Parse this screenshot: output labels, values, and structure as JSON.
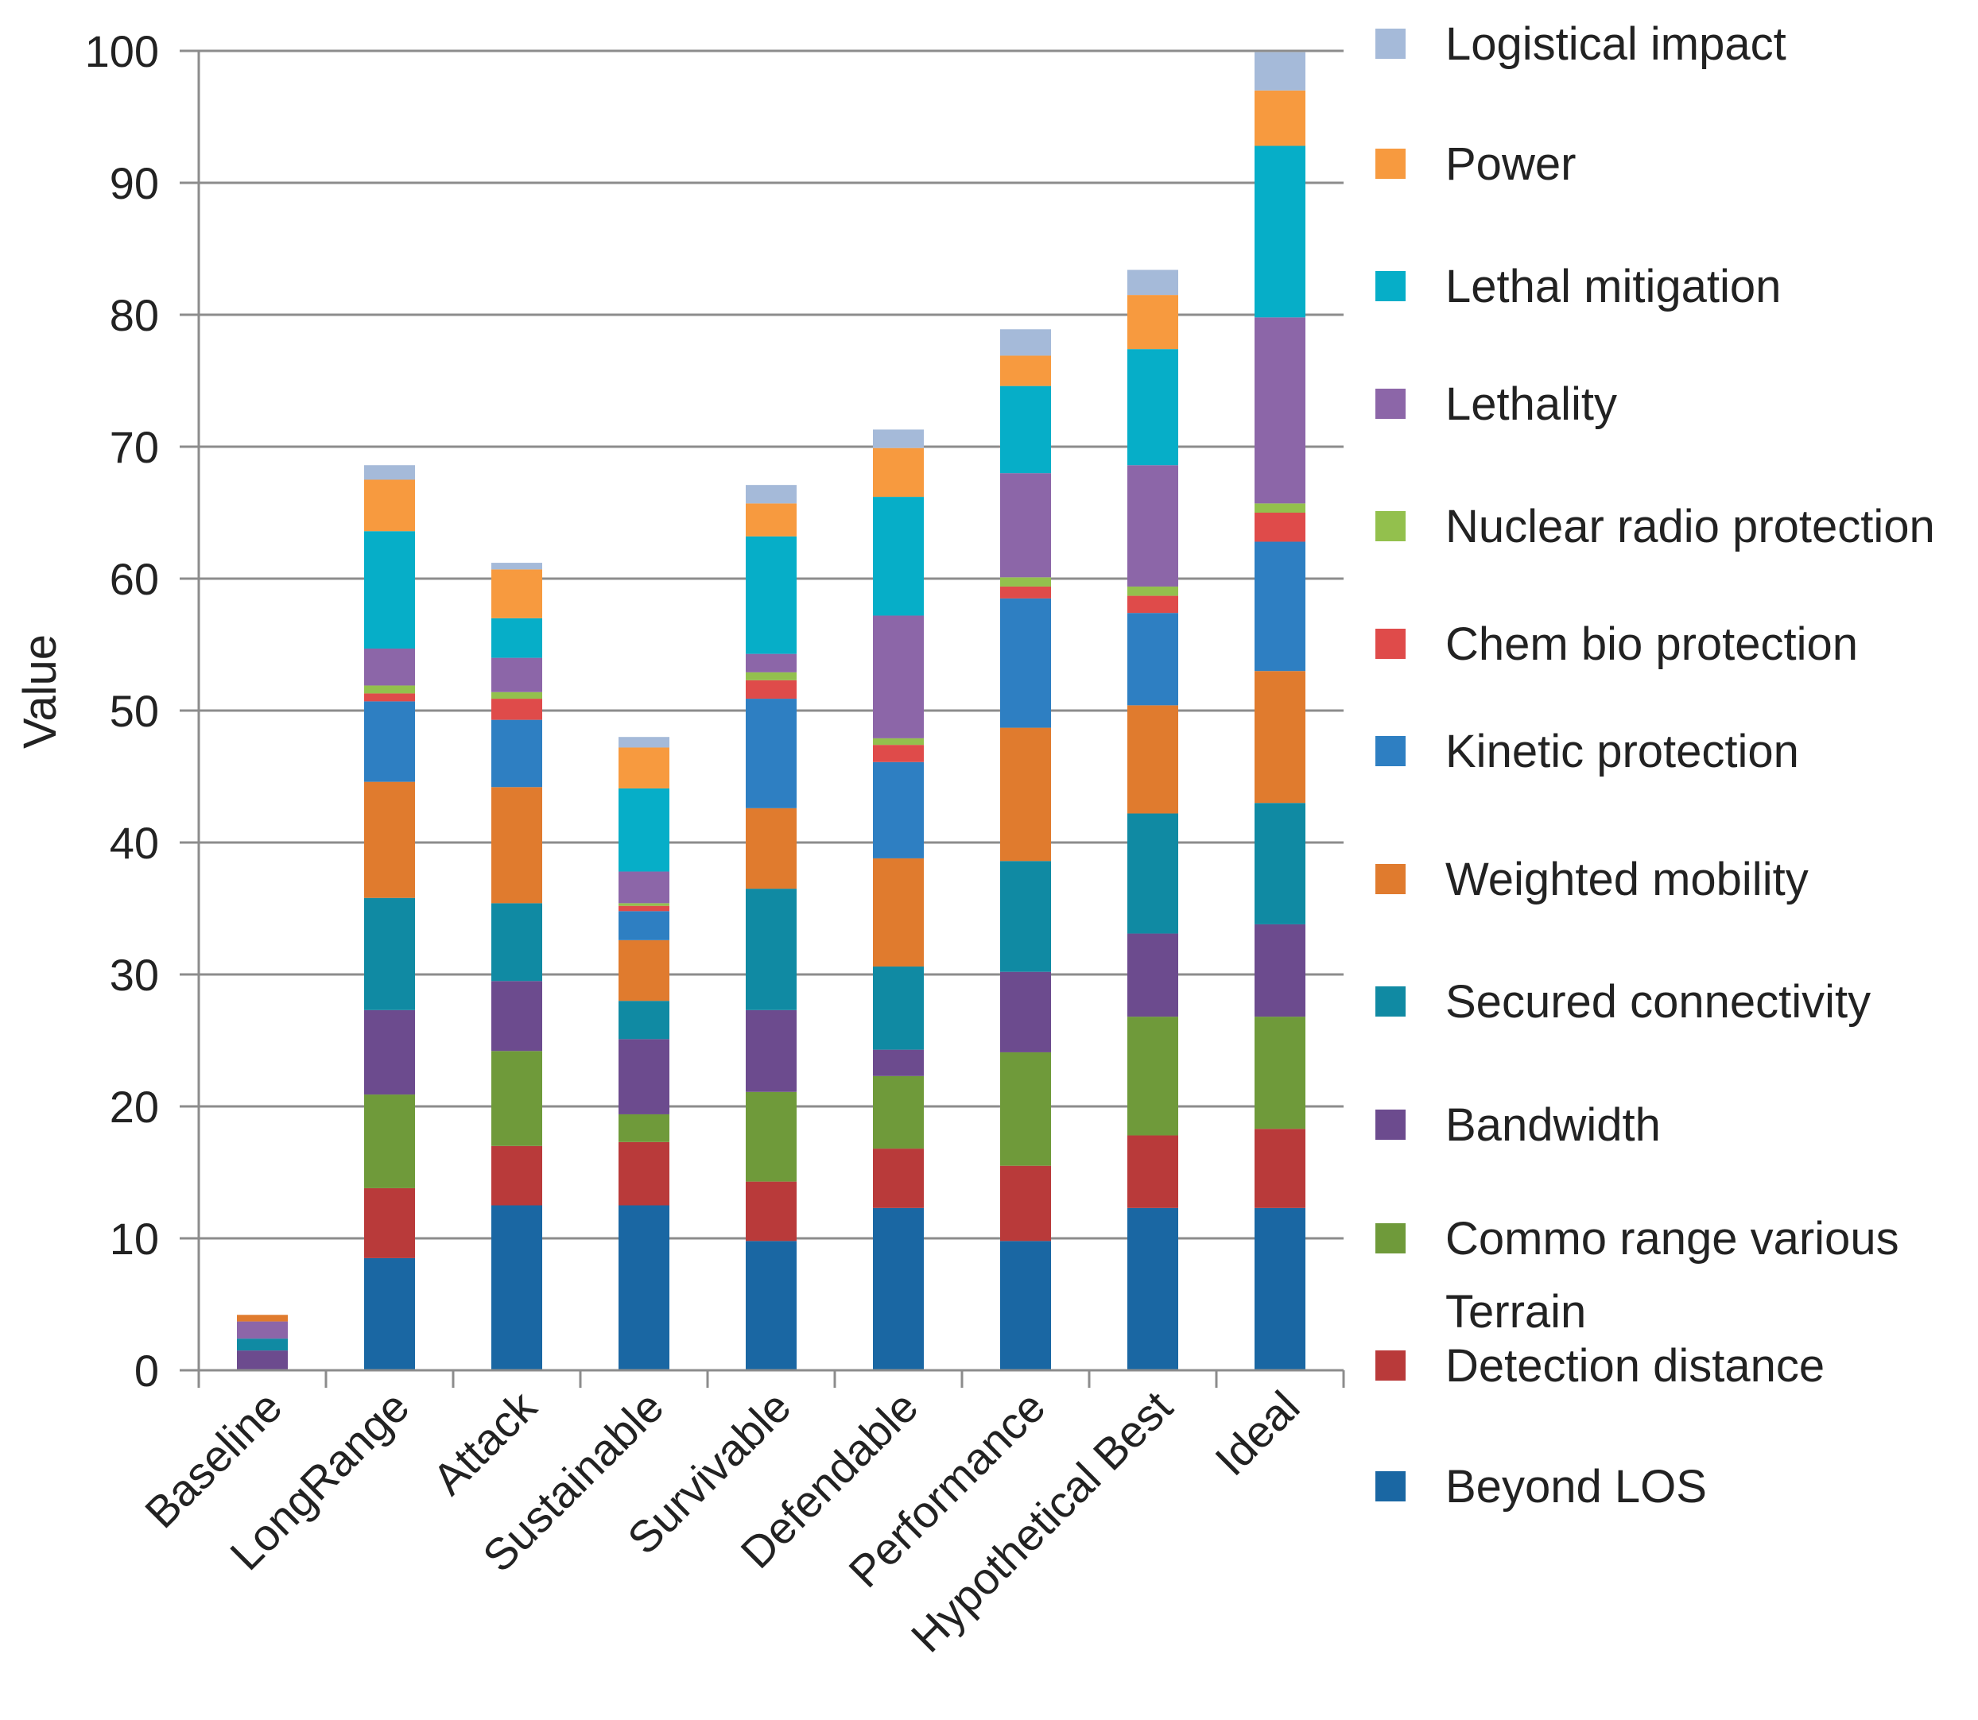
{
  "chart_data": {
    "type": "bar",
    "stacked": true,
    "title": "",
    "xlabel": "",
    "ylabel": "Value",
    "ylim": [
      0,
      100
    ],
    "yticks": [
      0,
      10,
      20,
      30,
      40,
      50,
      60,
      70,
      80,
      90,
      100
    ],
    "grid": true,
    "legend_position": "right",
    "categories": [
      "Baseline",
      "LongRange",
      "Attack",
      "Sustainable",
      "Survivable",
      "Defendable",
      "Performance",
      "Hypothetical Best",
      "Ideal"
    ],
    "series": [
      {
        "name": "Beyond LOS",
        "color": "#1a67a3",
        "values": [
          0,
          8.5,
          12.5,
          12.5,
          9.8,
          12.3,
          9.8,
          12.3,
          12.3
        ]
      },
      {
        "name": "Terrain Detection distance",
        "color": "#b93a3a",
        "values": [
          0,
          5.3,
          4.5,
          4.8,
          4.5,
          4.5,
          5.7,
          5.5,
          6.0
        ]
      },
      {
        "name": "Commo range various",
        "color": "#6f9a3a",
        "values": [
          0,
          7.1,
          7.2,
          2.1,
          6.8,
          5.5,
          8.6,
          9.0,
          8.5
        ]
      },
      {
        "name": "Bandwidth",
        "color": "#6c4b8e",
        "values": [
          0,
          6.4,
          5.3,
          5.7,
          6.2,
          2.0,
          6.1,
          6.3,
          7.0
        ]
      },
      {
        "name": "Secured connectivity",
        "color": "#108aa3",
        "values": [
          0,
          8.5,
          5.9,
          2.9,
          9.2,
          6.3,
          8.4,
          9.1,
          9.2
        ]
      },
      {
        "name": "Weighted mobility",
        "color": "#e07b2e",
        "values": [
          0,
          8.8,
          8.8,
          4.6,
          6.1,
          8.2,
          10.1,
          8.2,
          10.0
        ]
      },
      {
        "name": "Kinetic protection",
        "color": "#2e7fc2",
        "values": [
          0,
          6.1,
          5.1,
          2.2,
          8.3,
          7.3,
          9.8,
          7.0,
          9.8
        ]
      },
      {
        "name": "Chem bio protection",
        "color": "#df4b4a",
        "values": [
          0,
          0.6,
          1.6,
          0.4,
          1.4,
          1.3,
          0.9,
          1.3,
          2.2
        ]
      },
      {
        "name": "Nuclear radio protection",
        "color": "#93c04d",
        "values": [
          0,
          0.6,
          0.5,
          0.2,
          0.6,
          0.5,
          0.7,
          0.7,
          0.7
        ]
      },
      {
        "name": "Lethality",
        "color": "#8c66a8",
        "values": [
          0,
          2.8,
          2.6,
          2.4,
          1.4,
          9.3,
          7.9,
          9.2,
          14.1
        ]
      },
      {
        "name": "Lethal mitigation",
        "color": "#06aec8",
        "values": [
          0,
          8.9,
          3.0,
          6.3,
          8.9,
          9.0,
          6.6,
          8.8,
          13.0
        ]
      },
      {
        "name": "Power",
        "color": "#f79a3f",
        "values": [
          0,
          3.9,
          3.7,
          3.1,
          2.5,
          3.7,
          2.3,
          4.1,
          4.2
        ]
      },
      {
        "name": "Logistical impact",
        "color": "#a5bad9",
        "values": [
          0,
          1.1,
          0.5,
          0.8,
          1.4,
          1.4,
          2.0,
          1.9,
          2.9
        ]
      }
    ],
    "baseline_segments": [
      {
        "name": "Bandwidth",
        "color": "#6c4b8e",
        "value": 1.5
      },
      {
        "name": "Secured connectivity",
        "color": "#108aa3",
        "value": 0.9
      },
      {
        "name": "Lethality",
        "color": "#8c66a8",
        "value": 1.3
      },
      {
        "name": "Weighted mobility",
        "color": "#e07b2e",
        "value": 0.5
      }
    ]
  },
  "legend": {
    "items": [
      {
        "label": "Logistical impact",
        "color": "#a5bad9"
      },
      {
        "label": "Power",
        "color": "#f79a3f"
      },
      {
        "label": "Lethal mitigation",
        "color": "#06aec8"
      },
      {
        "label": "Lethality",
        "color": "#8c66a8"
      },
      {
        "label": "Nuclear radio protection",
        "color": "#93c04d"
      },
      {
        "label": "Chem bio protection",
        "color": "#df4b4a"
      },
      {
        "label": "Kinetic protection",
        "color": "#2e7fc2"
      },
      {
        "label": "Weighted mobility",
        "color": "#e07b2e"
      },
      {
        "label": "Secured connectivity",
        "color": "#108aa3"
      },
      {
        "label": "Bandwidth",
        "color": "#6c4b8e"
      },
      {
        "label": "Commo range various",
        "color": "#6f9a3a"
      },
      {
        "label": "Terrain",
        "color": "",
        "text_only": true
      },
      {
        "label": "Detection distance",
        "color": "#b93a3a"
      },
      {
        "label": "Beyond LOS",
        "color": "#1a67a3"
      }
    ]
  }
}
